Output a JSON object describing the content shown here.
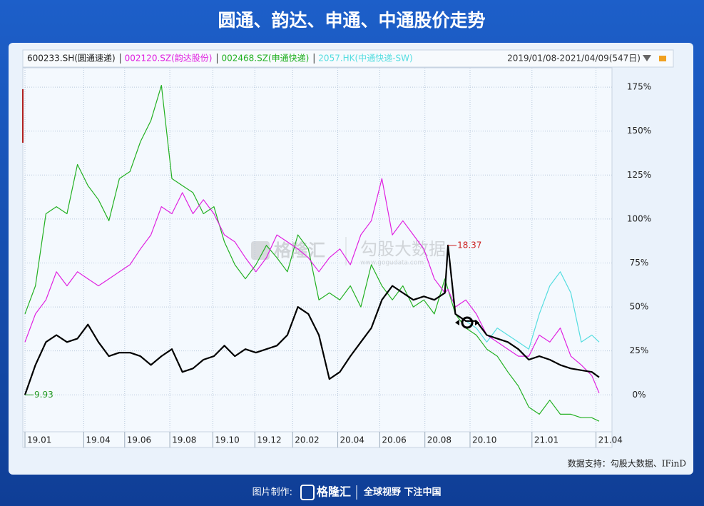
{
  "chart_data": {
    "type": "line",
    "title": "圆通、韵达、申通、中通股价走势",
    "date_range": "2019/01/08-2021/04/09(547日)",
    "source": "数据支持：勾股大数据、IFinD",
    "x": [
      0,
      10,
      20,
      30,
      40,
      50,
      60,
      70,
      80,
      90,
      100,
      110,
      120,
      130,
      140,
      150,
      160,
      170,
      180,
      190,
      200,
      210,
      220,
      230,
      240,
      250,
      260,
      270,
      280,
      290,
      300,
      310,
      320,
      330,
      340,
      350,
      360,
      370,
      380,
      390,
      400,
      403,
      410,
      420,
      430,
      440,
      450,
      460,
      470,
      480,
      490,
      500,
      510,
      520,
      530,
      540,
      547
    ],
    "xlim": [
      0,
      547
    ],
    "xticks": [
      {
        "value": 0,
        "label": "19.01"
      },
      {
        "value": 56,
        "label": "19.04"
      },
      {
        "value": 95,
        "label": "19.06"
      },
      {
        "value": 138,
        "label": "19.08"
      },
      {
        "value": 179,
        "label": "19.10"
      },
      {
        "value": 219,
        "label": "19.12"
      },
      {
        "value": 255,
        "label": "20.02"
      },
      {
        "value": 298,
        "label": "20.04"
      },
      {
        "value": 338,
        "label": "20.06"
      },
      {
        "value": 381,
        "label": "20.08"
      },
      {
        "value": 424,
        "label": "20.10"
      },
      {
        "value": 483,
        "label": "21.01"
      },
      {
        "value": 544,
        "label": "21.04"
      }
    ],
    "ylim": [
      -21,
      186
    ],
    "yticks": [
      {
        "value": 0,
        "label": "0%"
      },
      {
        "value": 25,
        "label": "25%"
      },
      {
        "value": 50,
        "label": "50%"
      },
      {
        "value": 75,
        "label": "75%"
      },
      {
        "value": 100,
        "label": "100%"
      },
      {
        "value": 125,
        "label": "125%"
      },
      {
        "value": 150,
        "label": "150%"
      },
      {
        "value": 175,
        "label": "175%"
      }
    ],
    "grid": true,
    "series": [
      {
        "name": "600233.SH(圆通速递)",
        "color": "#000000",
        "values": [
          0,
          17,
          30,
          34,
          30,
          32,
          40,
          30,
          22,
          24,
          24,
          22,
          17,
          22,
          26,
          13,
          15,
          20,
          22,
          28,
          22,
          26,
          24,
          26,
          28,
          34,
          50,
          46,
          34,
          9,
          13,
          22,
          30,
          38,
          54,
          62,
          58,
          54,
          56,
          54,
          58,
          85,
          46,
          42,
          42,
          34,
          32,
          30,
          26,
          20,
          22,
          20,
          17,
          15,
          14,
          13,
          10
        ]
      },
      {
        "name": "002120.SZ(韵达股份)",
        "color": "#e020e0",
        "values": [
          30,
          46,
          54,
          70,
          62,
          70,
          66,
          62,
          66,
          70,
          74,
          83,
          91,
          107,
          103,
          115,
          103,
          111,
          103,
          91,
          87,
          78,
          70,
          78,
          91,
          87,
          83,
          78,
          70,
          78,
          83,
          74,
          91,
          99,
          123,
          91,
          99,
          91,
          83,
          66,
          58,
          60,
          50,
          54,
          46,
          34,
          30,
          26,
          22,
          22,
          34,
          30,
          38,
          22,
          17,
          11,
          1
        ]
      },
      {
        "name": "002468.SZ(申通快递)",
        "color": "#22b022",
        "values": [
          46,
          62,
          103,
          107,
          103,
          131,
          119,
          111,
          99,
          123,
          127,
          144,
          156,
          176,
          123,
          119,
          115,
          103,
          107,
          87,
          74,
          66,
          74,
          85,
          78,
          70,
          91,
          83,
          54,
          58,
          54,
          62,
          50,
          74,
          62,
          54,
          62,
          50,
          54,
          46,
          66,
          60,
          46,
          38,
          34,
          26,
          22,
          13,
          5,
          -7,
          -11,
          -3,
          -11,
          -11,
          -13,
          -13,
          -15
        ]
      },
      {
        "name": "2057.HK(中通快递-SW)",
        "color": "#55dde0",
        "values": [
          null,
          null,
          null,
          null,
          null,
          null,
          null,
          null,
          null,
          null,
          null,
          null,
          null,
          null,
          null,
          null,
          null,
          null,
          null,
          null,
          null,
          null,
          null,
          null,
          null,
          null,
          null,
          null,
          null,
          null,
          null,
          null,
          null,
          null,
          null,
          null,
          null,
          null,
          null,
          null,
          null,
          null,
          null,
          42,
          38,
          30,
          38,
          34,
          30,
          26,
          46,
          62,
          70,
          58,
          30,
          34,
          30
        ]
      }
    ],
    "annotations": [
      {
        "label": "9.93",
        "x": 0,
        "y": 0,
        "color": "#229922"
      },
      {
        "label": "18.37",
        "x": 403,
        "y": 85,
        "color": "#cc2222"
      }
    ]
  },
  "watermark": {
    "brand": "格隆汇",
    "partner": "勾股大数据",
    "url": "www.gogudata.com"
  },
  "footer": {
    "made_by": "图片制作:",
    "brand": "格隆汇",
    "slogan": "全球视野 下注中国"
  }
}
